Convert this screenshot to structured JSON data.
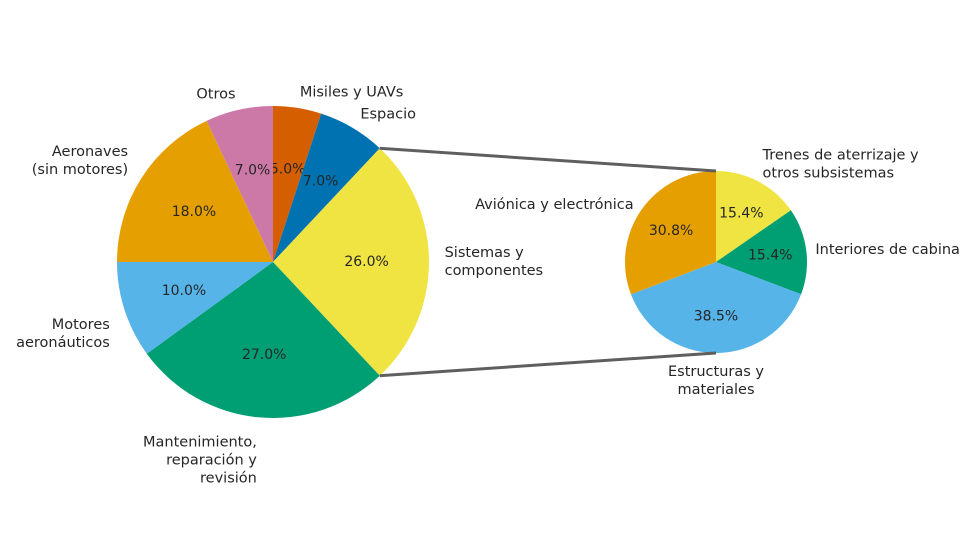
{
  "chart_data": [
    {
      "type": "pie",
      "title": "",
      "start_angle_deg": 90,
      "direction": "clockwise",
      "slices": [
        {
          "label": [
            "Misiles y UAVs"
          ],
          "value": 5.0,
          "pct_label": "5.0%",
          "color": "#d55e00"
        },
        {
          "label": [
            "Espacio"
          ],
          "value": 7.0,
          "pct_label": "7.0%",
          "color": "#0072b2"
        },
        {
          "label": [
            "Sistemas y",
            "componentes"
          ],
          "value": 26.0,
          "pct_label": "26.0%",
          "color": "#f0e442"
        },
        {
          "label": [
            "Mantenimiento,",
            "reparación y",
            "revisión"
          ],
          "value": 27.0,
          "pct_label": "27.0%",
          "color": "#009e73"
        },
        {
          "label": [
            "Motores",
            "aeronáuticos"
          ],
          "value": 10.0,
          "pct_label": "10.0%",
          "color": "#56b4e9"
        },
        {
          "label": [
            "Aeronaves",
            "(sin motores)"
          ],
          "value": 18.0,
          "pct_label": "18.0%",
          "color": "#e69f00"
        },
        {
          "label": [
            "Otros"
          ],
          "value": 7.0,
          "pct_label": "7.0%",
          "color": "#cc79a7"
        }
      ]
    },
    {
      "type": "pie",
      "title": "",
      "breakdown_of": "Sistemas y componentes",
      "start_angle_deg": 90,
      "direction": "clockwise",
      "slices": [
        {
          "label": [
            "Trenes de aterrizaje y",
            "otros subsistemas"
          ],
          "value": 15.4,
          "pct_label": "15.4%",
          "color": "#f0e442"
        },
        {
          "label": [
            "Interiores de cabina"
          ],
          "value": 15.4,
          "pct_label": "15.4%",
          "color": "#009e73"
        },
        {
          "label": [
            "Estructuras y",
            "materiales"
          ],
          "value": 38.5,
          "pct_label": "38.5%",
          "color": "#56b4e9"
        },
        {
          "label": [
            "Aviónica y electrónica"
          ],
          "value": 30.8,
          "pct_label": "30.8%",
          "color": "#e69f00"
        }
      ]
    }
  ],
  "connector_color": "#5f5f5f"
}
